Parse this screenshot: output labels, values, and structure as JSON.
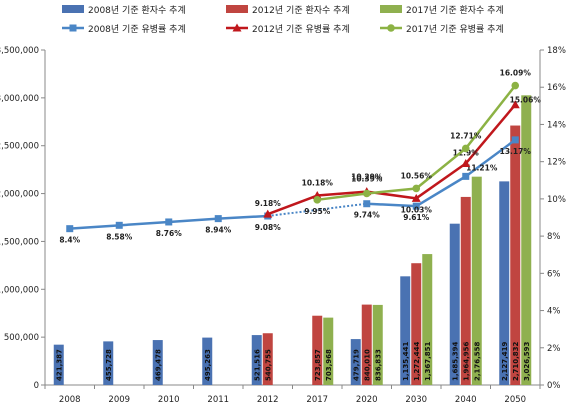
{
  "chart_data": {
    "type": "bar",
    "title": "",
    "xlabel": "",
    "ylabel": "",
    "categories": [
      "2008",
      "2009",
      "2010",
      "2011",
      "2012",
      "2017",
      "2020",
      "2030",
      "2040",
      "2050"
    ],
    "ylim": [
      0,
      3500000
    ],
    "y2lim": [
      0,
      18
    ],
    "y_ticks": [
      "0",
      "500,000",
      "1,000,000",
      "1,500,000",
      "2,000,000",
      "2,500,000",
      "3,000,000",
      "3,500,000"
    ],
    "y2_ticks": [
      "0%",
      "2%",
      "4%",
      "6%",
      "8%",
      "10%",
      "12%",
      "14%",
      "16%",
      "18%"
    ],
    "grid": false,
    "legend_position": "top",
    "bar_series": [
      {
        "name": "2008년 기준 환자수 추계",
        "color": "#4a72b2",
        "values": [
          421387,
          455728,
          469478,
          495263,
          521516,
          null,
          479719,
          1135441,
          1685394,
          2127419
        ],
        "labels": [
          "421,387",
          "455,728",
          "469,478",
          "495,263",
          "521,516",
          "",
          "479,719",
          "1,135,441",
          "1,685,394",
          "2,127,419"
        ]
      },
      {
        "name": "2012년 기준 환자수 추계",
        "color": "#c04540",
        "values": [
          null,
          null,
          null,
          null,
          540755,
          723857,
          840010,
          1272444,
          1964956,
          2710832
        ],
        "labels": [
          "",
          "",
          "",
          "",
          "540,755",
          "723,857",
          "840,010",
          "1,272,444",
          "1,964,956",
          "2,710,832"
        ]
      },
      {
        "name": "2017년 기준 환자수 추계",
        "color": "#8fb04f",
        "values": [
          null,
          null,
          null,
          null,
          null,
          703968,
          836833,
          1367851,
          2176558,
          3026593
        ],
        "labels": [
          "",
          "",
          "",
          "",
          "",
          "703,968",
          "836,833",
          "1,367,851",
          "2,176,558",
          "3,026,593"
        ]
      }
    ],
    "line_series": [
      {
        "name": "2008년 기준 유병률 추계",
        "color": "#4a86c6",
        "marker": "square",
        "values": [
          8.4,
          8.58,
          8.76,
          8.94,
          9.08,
          null,
          9.74,
          9.61,
          11.21,
          13.17
        ],
        "labels": [
          "8.4%",
          "8.58%",
          "8.76%",
          "8.94%",
          "9.08%",
          "",
          "9.74%",
          "9.61%",
          "11.21%",
          "13.17%"
        ]
      },
      {
        "name": "2012년 기준 유병률 추계",
        "color": "#c0171c",
        "marker": "triangle",
        "values": [
          null,
          null,
          null,
          null,
          9.18,
          10.18,
          10.39,
          10.03,
          11.9,
          15.06
        ],
        "labels": [
          "",
          "",
          "",
          "",
          "9.18%",
          "10.18%",
          "10.39%",
          "10.03%",
          "11.9%",
          "15.06%"
        ]
      },
      {
        "name": "2017년 기준 유병률 추계",
        "color": "#8cb244",
        "marker": "circle",
        "values": [
          null,
          null,
          null,
          null,
          null,
          9.95,
          10.29,
          10.56,
          12.71,
          16.09
        ],
        "labels": [
          "",
          "",
          "",
          "",
          "",
          "9.95%",
          "10.29%",
          "10.56%",
          "12.71%",
          "16.09%"
        ]
      }
    ]
  }
}
